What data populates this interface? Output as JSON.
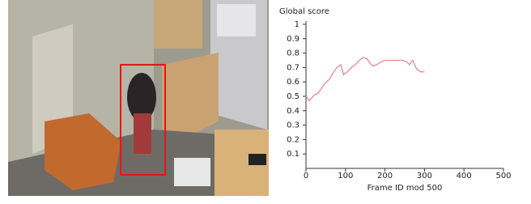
{
  "chart_data": {
    "type": "line",
    "title": "Global score",
    "x_label": "Frame ID mod 500",
    "x": [
      0,
      8,
      15,
      22,
      30,
      38,
      45,
      52,
      60,
      68,
      78,
      88,
      95,
      105,
      115,
      125,
      135,
      145,
      155,
      162,
      170,
      180,
      190,
      200,
      215,
      230,
      245,
      255,
      262,
      270,
      280,
      290,
      300
    ],
    "values": [
      0.5,
      0.47,
      0.49,
      0.51,
      0.52,
      0.55,
      0.58,
      0.6,
      0.62,
      0.66,
      0.7,
      0.72,
      0.65,
      0.67,
      0.7,
      0.72,
      0.75,
      0.77,
      0.76,
      0.73,
      0.71,
      0.72,
      0.74,
      0.75,
      0.75,
      0.75,
      0.75,
      0.74,
      0.72,
      0.75,
      0.69,
      0.67,
      0.67
    ],
    "color": "#e8888c",
    "xlim": [
      0,
      500
    ],
    "xticks": [
      0,
      100,
      200,
      300,
      400,
      500
    ],
    "ylim": [
      0,
      1
    ],
    "yticks": [
      0.1,
      0.2,
      0.3,
      0.4,
      0.5,
      0.6,
      0.7,
      0.8,
      0.9,
      1
    ]
  }
}
